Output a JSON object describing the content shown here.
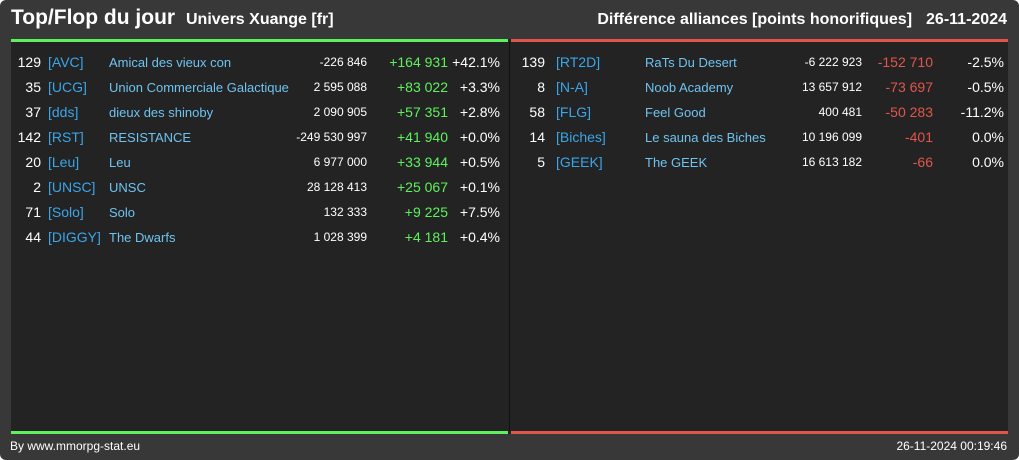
{
  "header": {
    "title": "Top/Flop du jour",
    "universe": "Univers Xuange [fr]",
    "category": "Différence alliances [points honorifiques]",
    "date": "26-11-2024"
  },
  "colors": {
    "gain": "#5df25d",
    "loss": "#e0564b",
    "tag": "#3aa6ea",
    "name": "#6ec3f0"
  },
  "top": [
    {
      "rank": "129",
      "tag": "[AVC]",
      "name": "Amical des vieux con",
      "points": "-226 846",
      "diff": "+164 931",
      "pct": "+42.1%"
    },
    {
      "rank": "35",
      "tag": "[UCG]",
      "name": "Union Commerciale Galactique",
      "points": "2 595 088",
      "diff": "+83 022",
      "pct": "+3.3%"
    },
    {
      "rank": "37",
      "tag": "[dds]",
      "name": "dieux des shinoby",
      "points": "2 090 905",
      "diff": "+57 351",
      "pct": "+2.8%"
    },
    {
      "rank": "142",
      "tag": "[RST]",
      "name": "RESISTANCE",
      "points": "-249 530 997",
      "diff": "+41 940",
      "pct": "+0.0%"
    },
    {
      "rank": "20",
      "tag": "[Leu]",
      "name": "Leu",
      "points": "6 977 000",
      "diff": "+33 944",
      "pct": "+0.5%"
    },
    {
      "rank": "2",
      "tag": "[UNSC]",
      "name": "UNSC",
      "points": "28 128 413",
      "diff": "+25 067",
      "pct": "+0.1%"
    },
    {
      "rank": "71",
      "tag": "[Solo]",
      "name": "Solo",
      "points": "132 333",
      "diff": "+9 225",
      "pct": "+7.5%"
    },
    {
      "rank": "44",
      "tag": "[DIGGY]",
      "name": "The Dwarfs",
      "points": "1 028 399",
      "diff": "+4 181",
      "pct": "+0.4%"
    }
  ],
  "flop": [
    {
      "rank": "139",
      "tag": "[RT2D]",
      "name": "RaTs Du Desert",
      "points": "-6 222 923",
      "diff": "-152 710",
      "pct": "-2.5%"
    },
    {
      "rank": "8",
      "tag": "[N-A]",
      "name": "Noob Academy",
      "points": "13 657 912",
      "diff": "-73 697",
      "pct": "-0.5%"
    },
    {
      "rank": "58",
      "tag": "[FLG]",
      "name": "Feel Good",
      "points": "400 481",
      "diff": "-50 283",
      "pct": "-11.2%"
    },
    {
      "rank": "14",
      "tag": "[Biches]",
      "name": "Le sauna des Biches",
      "points": "10 196 099",
      "diff": "-401",
      "pct": "0.0%"
    },
    {
      "rank": "5",
      "tag": "[GEEK]",
      "name": "The GEEK",
      "points": "16 613 182",
      "diff": "-66",
      "pct": "0.0%"
    }
  ],
  "footer": {
    "credit": "By www.mmorpg-stat.eu",
    "timestamp": "26-11-2024 00:19:46"
  }
}
